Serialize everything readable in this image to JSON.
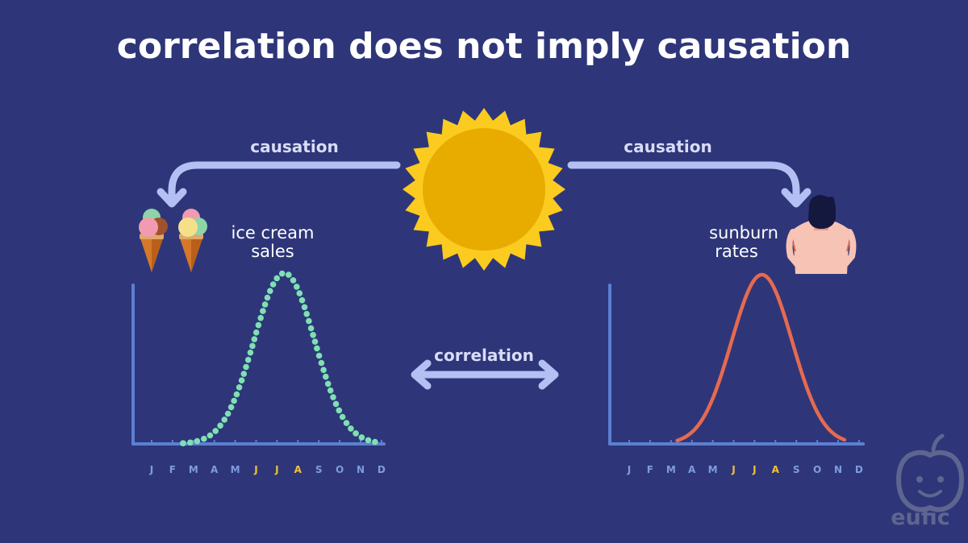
{
  "title": "correlation does not imply causation",
  "labels": {
    "causation_left": "causation",
    "causation_right": "causation",
    "correlation": "correlation"
  },
  "logo_text": "eufic",
  "colors": {
    "background": "#2e3679",
    "arrow": "#b4c0f3",
    "axis": "#5c7fd1",
    "month_default": "#7f9be0",
    "month_highlight": "#f2c23a",
    "ice_cream_curve": "#7fe0b3",
    "sunburn_curve": "#e66a4f",
    "sun_outer": "#fbcb1f",
    "sun_inner": "#e8ab00"
  },
  "chart_data": [
    {
      "type": "line",
      "title": "ice cream sales",
      "title_lines": [
        "ice cream",
        "sales"
      ],
      "style": "dotted",
      "categories": [
        "J",
        "F",
        "M",
        "A",
        "M",
        "J",
        "J",
        "A",
        "S",
        "O",
        "N",
        "D"
      ],
      "highlight_categories": [
        5,
        6,
        7
      ],
      "mu": 6.35,
      "sigma": 1.45,
      "x_range": [
        1.5,
        10.9
      ],
      "peak": 1.0,
      "xlabel": "",
      "ylabel": "",
      "ylim": [
        0,
        1.05
      ]
    },
    {
      "type": "line",
      "title": "sunburn rates",
      "title_lines": [
        "sunburn",
        "rates"
      ],
      "style": "solid",
      "categories": [
        "J",
        "F",
        "M",
        "A",
        "M",
        "J",
        "J",
        "A",
        "S",
        "O",
        "N",
        "D"
      ],
      "highlight_categories": [
        5,
        6,
        7
      ],
      "mu": 6.35,
      "sigma": 1.45,
      "x_range": [
        2.3,
        10.3
      ],
      "peak": 1.0,
      "xlabel": "",
      "ylabel": "",
      "ylim": [
        0,
        1.05
      ]
    }
  ]
}
